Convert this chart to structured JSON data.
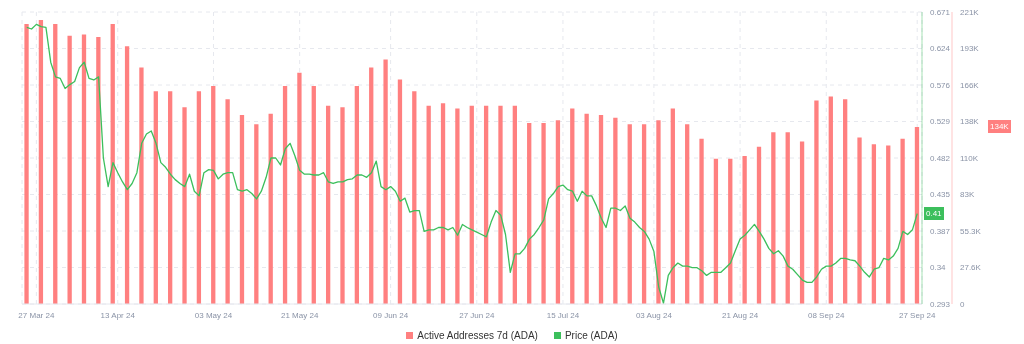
{
  "chart_data": {
    "type": "line",
    "x": [
      "2024-03-25",
      "2024-03-26",
      "2024-03-27",
      "2024-03-28",
      "2024-03-29",
      "2024-03-30",
      "2024-03-31",
      "2024-04-01",
      "2024-04-02",
      "2024-04-03",
      "2024-04-04",
      "2024-04-05",
      "2024-04-06",
      "2024-04-07",
      "2024-04-08",
      "2024-04-09",
      "2024-04-10",
      "2024-04-11",
      "2024-04-12",
      "2024-04-13",
      "2024-04-14",
      "2024-04-15",
      "2024-04-16",
      "2024-04-17",
      "2024-04-18",
      "2024-04-19",
      "2024-04-20",
      "2024-04-21",
      "2024-04-22",
      "2024-04-23",
      "2024-04-24",
      "2024-04-25",
      "2024-04-26",
      "2024-04-27",
      "2024-04-28",
      "2024-04-29",
      "2024-04-30",
      "2024-05-01",
      "2024-05-02",
      "2024-05-03",
      "2024-05-04",
      "2024-05-05",
      "2024-05-06",
      "2024-05-07",
      "2024-05-08",
      "2024-05-09",
      "2024-05-10",
      "2024-05-11",
      "2024-05-12",
      "2024-05-13",
      "2024-05-14",
      "2024-05-15",
      "2024-05-16",
      "2024-05-17",
      "2024-05-18",
      "2024-05-19",
      "2024-05-20",
      "2024-05-21",
      "2024-05-22",
      "2024-05-23",
      "2024-05-24",
      "2024-05-25",
      "2024-05-26",
      "2024-05-27",
      "2024-05-28",
      "2024-05-29",
      "2024-05-30",
      "2024-05-31",
      "2024-06-01",
      "2024-06-02",
      "2024-06-03",
      "2024-06-04",
      "2024-06-05",
      "2024-06-06",
      "2024-06-07",
      "2024-06-08",
      "2024-06-09",
      "2024-06-10",
      "2024-06-11",
      "2024-06-12",
      "2024-06-13",
      "2024-06-14",
      "2024-06-15",
      "2024-06-16",
      "2024-06-17",
      "2024-06-18",
      "2024-06-19",
      "2024-06-20",
      "2024-06-21",
      "2024-06-22",
      "2024-06-23",
      "2024-06-24",
      "2024-06-25",
      "2024-06-26",
      "2024-06-27",
      "2024-06-28",
      "2024-06-29",
      "2024-06-30",
      "2024-07-01",
      "2024-07-02",
      "2024-07-03",
      "2024-07-04",
      "2024-07-05",
      "2024-07-06",
      "2024-07-07",
      "2024-07-08",
      "2024-07-09",
      "2024-07-10",
      "2024-07-11",
      "2024-07-12",
      "2024-07-13",
      "2024-07-14",
      "2024-07-15",
      "2024-07-16",
      "2024-07-17",
      "2024-07-18",
      "2024-07-19",
      "2024-07-20",
      "2024-07-21",
      "2024-07-22",
      "2024-07-23",
      "2024-07-24",
      "2024-07-25",
      "2024-07-26",
      "2024-07-27",
      "2024-07-28",
      "2024-07-29",
      "2024-07-30",
      "2024-07-31",
      "2024-08-01",
      "2024-08-02",
      "2024-08-03",
      "2024-08-04",
      "2024-08-05",
      "2024-08-06",
      "2024-08-07",
      "2024-08-08",
      "2024-08-09",
      "2024-08-10",
      "2024-08-11",
      "2024-08-12",
      "2024-08-13",
      "2024-08-14",
      "2024-08-15",
      "2024-08-16",
      "2024-08-17",
      "2024-08-18",
      "2024-08-19",
      "2024-08-20",
      "2024-08-21",
      "2024-08-22",
      "2024-08-23",
      "2024-08-24",
      "2024-08-25",
      "2024-08-26",
      "2024-08-27",
      "2024-08-28",
      "2024-08-29",
      "2024-08-30",
      "2024-08-31",
      "2024-09-01",
      "2024-09-02",
      "2024-09-03",
      "2024-09-04",
      "2024-09-05",
      "2024-09-06",
      "2024-09-07",
      "2024-09-08",
      "2024-09-09",
      "2024-09-10",
      "2024-09-11",
      "2024-09-12",
      "2024-09-13",
      "2024-09-14",
      "2024-09-15",
      "2024-09-16",
      "2024-09-17",
      "2024-09-18",
      "2024-09-19",
      "2024-09-20",
      "2024-09-21",
      "2024-09-22",
      "2024-09-23",
      "2024-09-24",
      "2024-09-25",
      "2024-09-26",
      "2024-09-27"
    ],
    "series": [
      {
        "type": "bar",
        "axis": "y2",
        "name": "Active Addresses 7d (ADA)",
        "color": "#ff8080",
        "x": [
          "2024-03-25",
          "2024-03-28",
          "2024-03-31",
          "2024-04-03",
          "2024-04-06",
          "2024-04-09",
          "2024-04-12",
          "2024-04-15",
          "2024-04-18",
          "2024-04-21",
          "2024-04-24",
          "2024-04-27",
          "2024-04-30",
          "2024-05-03",
          "2024-05-06",
          "2024-05-09",
          "2024-05-12",
          "2024-05-15",
          "2024-05-18",
          "2024-05-21",
          "2024-05-24",
          "2024-05-27",
          "2024-05-30",
          "2024-06-02",
          "2024-06-05",
          "2024-06-08",
          "2024-06-11",
          "2024-06-14",
          "2024-06-17",
          "2024-06-20",
          "2024-06-23",
          "2024-06-26",
          "2024-06-29",
          "2024-07-02",
          "2024-07-05",
          "2024-07-08",
          "2024-07-11",
          "2024-07-14",
          "2024-07-17",
          "2024-07-20",
          "2024-07-23",
          "2024-07-26",
          "2024-07-29",
          "2024-08-01",
          "2024-08-04",
          "2024-08-07",
          "2024-08-10",
          "2024-08-13",
          "2024-08-16",
          "2024-08-19",
          "2024-08-22",
          "2024-08-25",
          "2024-08-28",
          "2024-08-31",
          "2024-09-03",
          "2024-09-06",
          "2024-09-09",
          "2024-09-12",
          "2024-09-15",
          "2024-09-18",
          "2024-09-21",
          "2024-09-24",
          "2024-09-27"
        ],
        "values": [
          212000,
          215000,
          212000,
          203000,
          204000,
          202000,
          212000,
          195000,
          179000,
          161000,
          161000,
          149000,
          161000,
          165000,
          155000,
          143000,
          136000,
          144000,
          165000,
          175000,
          165000,
          150000,
          149000,
          165000,
          179000,
          185000,
          170000,
          161000,
          150000,
          152000,
          148000,
          150000,
          150000,
          150000,
          150000,
          137000,
          137000,
          139000,
          148000,
          144000,
          143000,
          141000,
          136000,
          136000,
          139000,
          148000,
          136000,
          125000,
          110000,
          110000,
          112000,
          119000,
          130000,
          130000,
          123000,
          154000,
          157000,
          155000,
          126000,
          121000,
          120000,
          125000,
          134000
        ]
      },
      {
        "axis": "y",
        "name": "Price (ADA)",
        "color": "#3cbf5c",
        "values": [
          0.651,
          0.649,
          0.655,
          0.652,
          0.651,
          0.606,
          0.587,
          0.585,
          0.572,
          0.577,
          0.581,
          0.599,
          0.606,
          0.585,
          0.583,
          0.587,
          0.482,
          0.445,
          0.476,
          0.463,
          0.451,
          0.441,
          0.449,
          0.463,
          0.501,
          0.513,
          0.517,
          0.501,
          0.476,
          0.47,
          0.461,
          0.454,
          0.449,
          0.445,
          0.461,
          0.439,
          0.433,
          0.463,
          0.467,
          0.466,
          0.455,
          0.461,
          0.463,
          0.463,
          0.441,
          0.439,
          0.441,
          0.436,
          0.429,
          0.439,
          0.457,
          0.482,
          0.482,
          0.473,
          0.494,
          0.501,
          0.485,
          0.466,
          0.461,
          0.461,
          0.46,
          0.46,
          0.463,
          0.451,
          0.449,
          0.451,
          0.451,
          0.454,
          0.455,
          0.46,
          0.46,
          0.457,
          0.463,
          0.478,
          0.445,
          0.441,
          0.445,
          0.439,
          0.426,
          0.43,
          0.412,
          0.414,
          0.414,
          0.387,
          0.389,
          0.389,
          0.392,
          0.392,
          0.389,
          0.392,
          0.382,
          0.396,
          0.392,
          0.389,
          0.386,
          0.383,
          0.38,
          0.399,
          0.414,
          0.408,
          0.383,
          0.334,
          0.358,
          0.358,
          0.365,
          0.377,
          0.383,
          0.392,
          0.402,
          0.429,
          0.436,
          0.445,
          0.447,
          0.441,
          0.439,
          0.426,
          0.439,
          0.433,
          0.433,
          0.42,
          0.404,
          0.392,
          0.417,
          0.417,
          0.414,
          0.42,
          0.404,
          0.399,
          0.392,
          0.387,
          0.377,
          0.361,
          0.315,
          0.294,
          0.33,
          0.34,
          0.346,
          0.342,
          0.342,
          0.34,
          0.34,
          0.336,
          0.33,
          0.334,
          0.334,
          0.334,
          0.34,
          0.346,
          0.362,
          0.377,
          0.382,
          0.389,
          0.396,
          0.387,
          0.377,
          0.365,
          0.358,
          0.362,
          0.355,
          0.342,
          0.338,
          0.331,
          0.324,
          0.321,
          0.321,
          0.328,
          0.338,
          0.342,
          0.342,
          0.346,
          0.352,
          0.352,
          0.35,
          0.349,
          0.342,
          0.334,
          0.328,
          0.338,
          0.34,
          0.352,
          0.35,
          0.355,
          0.365,
          0.387,
          0.383,
          0.389,
          0.41
        ]
      }
    ],
    "xlim": [
      "2024-03-24",
      "2024-09-28"
    ],
    "xticks": [
      {
        "value": "2024-03-27",
        "label": "27 Mar 24"
      },
      {
        "value": "2024-04-13",
        "label": "13 Apr 24"
      },
      {
        "value": "2024-05-03",
        "label": "03 May 24"
      },
      {
        "value": "2024-05-21",
        "label": "21 May 24"
      },
      {
        "value": "2024-06-09",
        "label": "09 Jun 24"
      },
      {
        "value": "2024-06-27",
        "label": "27 Jun 24"
      },
      {
        "value": "2024-07-15",
        "label": "15 Jul 24"
      },
      {
        "value": "2024-08-03",
        "label": "03 Aug 24"
      },
      {
        "value": "2024-08-21",
        "label": "21 Aug 24"
      },
      {
        "value": "2024-09-08",
        "label": "08 Sep 24"
      },
      {
        "value": "2024-09-27",
        "label": "27 Sep 24"
      }
    ],
    "ylim": [
      0.293,
      0.671
    ],
    "yticks": [
      0.293,
      {
        "value": 0.34025,
        "label": "0.34"
      },
      {
        "value": 0.3875,
        "label": "0.387"
      },
      {
        "value": 0.43475,
        "label": "0.435"
      },
      0.482,
      {
        "value": 0.52925,
        "label": "0.529"
      },
      {
        "value": 0.5765,
        "label": "0.576"
      },
      {
        "value": 0.62375,
        "label": "0.624"
      },
      0.671
    ],
    "y2lim": [
      0,
      221000
    ],
    "y2ticks": [
      {
        "value": 0,
        "label": "0"
      },
      {
        "value": 27625,
        "label": "27.6K"
      },
      {
        "value": 55250,
        "label": "55.3K"
      },
      {
        "value": 82875,
        "label": "83K"
      },
      {
        "value": 110500,
        "label": "110K"
      },
      {
        "value": 138125,
        "label": "138K"
      },
      {
        "value": 165750,
        "label": "166K"
      },
      {
        "value": 193375,
        "label": "193K"
      },
      {
        "value": 221000,
        "label": "221K"
      }
    ],
    "annotations": [
      "134K",
      "0.41"
    ],
    "grid": true,
    "legend": "bottom",
    "marker": "none",
    "line_style": "solid"
  }
}
